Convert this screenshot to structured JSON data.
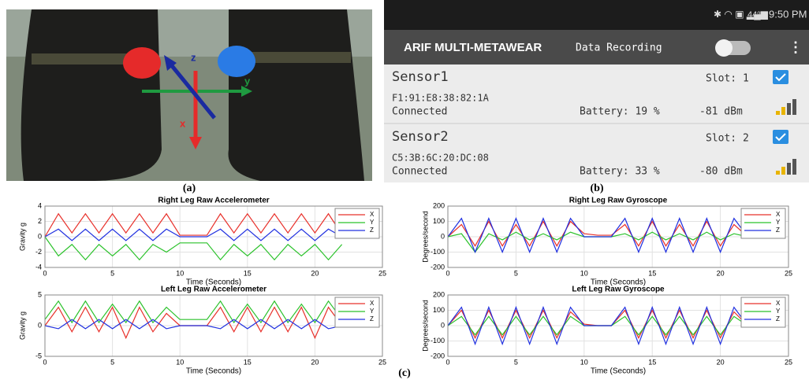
{
  "photo": {
    "label": "(a)",
    "axis_labels": [
      "z",
      "y",
      "x"
    ]
  },
  "app": {
    "label": "(b)",
    "status": {
      "battery": "44%",
      "time": "9:50 PM"
    },
    "title": "ARIF MULTI-METAWEAR",
    "recording": "Data Recording",
    "sensors": [
      {
        "name": "Sensor1",
        "slot": "Slot: 1",
        "mac": "F1:91:E8:38:82:1A",
        "state": "Connected",
        "battery": "Battery: 19 %",
        "rssi": "-81 dBm"
      },
      {
        "name": "Sensor2",
        "slot": "Slot: 2",
        "mac": "C5:3B:6C:20:DC:08",
        "state": "Connected",
        "battery": "Battery: 33 %",
        "rssi": "-80 dBm"
      }
    ]
  },
  "charts_label": "(c)",
  "chart_data": [
    {
      "type": "line",
      "title": "Right Leg Raw Accelerometer",
      "xlabel": "Time (Seconds)",
      "ylabel": "Gravity g",
      "legend": "upper right",
      "grid": true,
      "x": [
        0,
        1,
        2,
        3,
        4,
        5,
        6,
        7,
        8,
        9,
        10,
        11,
        12,
        13,
        14,
        15,
        16,
        17,
        18,
        19,
        20,
        21,
        22
      ],
      "xlim": [
        0,
        25
      ],
      "xticks": [
        0,
        5,
        10,
        15,
        20,
        25
      ],
      "ylim": [
        -4,
        4
      ],
      "yticks": [
        -4,
        -2,
        0,
        2,
        4
      ],
      "series": [
        {
          "name": "X",
          "color": "#e8302a",
          "values": [
            0,
            3,
            0.5,
            3,
            0.5,
            3,
            0.5,
            3,
            0.5,
            3,
            0.2,
            0.2,
            0.2,
            3,
            0.5,
            3,
            0.5,
            3,
            0.5,
            3,
            0.5,
            3,
            0.3
          ]
        },
        {
          "name": "Y",
          "color": "#2bc22b",
          "values": [
            0,
            -2.5,
            -1,
            -3,
            -1,
            -2.5,
            -1,
            -3,
            -1,
            -2,
            -0.8,
            -0.8,
            -0.8,
            -3,
            -1,
            -2.5,
            -1,
            -3,
            -1,
            -2.5,
            -1,
            -3,
            -1
          ]
        },
        {
          "name": "Z",
          "color": "#2030e0",
          "values": [
            0,
            1,
            -0.5,
            1,
            -0.5,
            1,
            -0.5,
            1,
            -0.5,
            1,
            0,
            0,
            0,
            1,
            -0.5,
            1,
            -0.5,
            1,
            -0.5,
            1,
            -0.5,
            1,
            0
          ]
        }
      ]
    },
    {
      "type": "line",
      "title": "Right Leg Raw Gyroscope",
      "xlabel": "Time (Seconds)",
      "ylabel": "Degrees/second",
      "legend": "upper right",
      "grid": true,
      "x": [
        0,
        1,
        2,
        3,
        4,
        5,
        6,
        7,
        8,
        9,
        10,
        11,
        12,
        13,
        14,
        15,
        16,
        17,
        18,
        19,
        20,
        21,
        22
      ],
      "xlim": [
        0,
        25
      ],
      "xticks": [
        0,
        5,
        10,
        15,
        20,
        25
      ],
      "ylim": [
        -200,
        200
      ],
      "yticks": [
        -200,
        -100,
        0,
        100,
        200
      ],
      "series": [
        {
          "name": "X",
          "color": "#e8302a",
          "values": [
            0,
            80,
            -60,
            100,
            -60,
            80,
            -60,
            100,
            -60,
            100,
            20,
            10,
            10,
            80,
            -60,
            100,
            -60,
            80,
            -60,
            100,
            -60,
            80,
            0
          ]
        },
        {
          "name": "Y",
          "color": "#2bc22b",
          "values": [
            0,
            20,
            -100,
            20,
            -20,
            30,
            -20,
            20,
            -20,
            30,
            0,
            0,
            0,
            20,
            -20,
            30,
            -20,
            20,
            -20,
            30,
            -20,
            20,
            0
          ]
        },
        {
          "name": "Z",
          "color": "#2030e0",
          "values": [
            0,
            120,
            -100,
            120,
            -100,
            120,
            -100,
            120,
            -100,
            120,
            0,
            0,
            0,
            120,
            -100,
            120,
            -100,
            120,
            -100,
            120,
            -100,
            120,
            0
          ]
        }
      ]
    },
    {
      "type": "line",
      "title": "Left Leg Raw Accelerometer",
      "xlabel": "Time (Seconds)",
      "ylabel": "Gravity g",
      "legend": "upper right",
      "grid": true,
      "x": [
        0,
        1,
        2,
        3,
        4,
        5,
        6,
        7,
        8,
        9,
        10,
        11,
        12,
        13,
        14,
        15,
        16,
        17,
        18,
        19,
        20,
        21,
        22
      ],
      "xlim": [
        0,
        25
      ],
      "xticks": [
        0,
        5,
        10,
        15,
        20,
        25
      ],
      "ylim": [
        -5,
        5
      ],
      "yticks": [
        -5,
        0,
        5
      ],
      "series": [
        {
          "name": "X",
          "color": "#e8302a",
          "values": [
            0,
            3,
            -1,
            3,
            -1,
            3,
            -2,
            3,
            -1,
            2,
            0,
            0,
            0,
            3,
            -1,
            3,
            -1,
            3,
            -1,
            3,
            -2,
            3,
            0
          ]
        },
        {
          "name": "Y",
          "color": "#2bc22b",
          "values": [
            1,
            4,
            0.5,
            4,
            0.5,
            3.5,
            0.5,
            4,
            0.5,
            3,
            1,
            1,
            1,
            4,
            0.5,
            3.5,
            0.5,
            4,
            0.5,
            3.5,
            0.5,
            4,
            1
          ]
        },
        {
          "name": "Z",
          "color": "#2030e0",
          "values": [
            0,
            -0.5,
            1,
            -0.5,
            1,
            -0.5,
            1,
            -0.5,
            1,
            -0.5,
            0,
            0,
            0,
            -0.5,
            1,
            -0.5,
            1,
            -0.5,
            1,
            -0.5,
            1,
            -0.5,
            0
          ]
        }
      ]
    },
    {
      "type": "line",
      "title": "Left Leg Raw Gyroscope",
      "xlabel": "Time (Seconds)",
      "ylabel": "Degrees/second",
      "legend": "upper right",
      "grid": true,
      "x": [
        0,
        1,
        2,
        3,
        4,
        5,
        6,
        7,
        8,
        9,
        10,
        11,
        12,
        13,
        14,
        15,
        16,
        17,
        18,
        19,
        20,
        21,
        22
      ],
      "xlim": [
        0,
        25
      ],
      "xticks": [
        0,
        5,
        10,
        15,
        20,
        25
      ],
      "ylim": [
        -200,
        200
      ],
      "yticks": [
        -200,
        -100,
        0,
        100,
        200
      ],
      "series": [
        {
          "name": "X",
          "color": "#e8302a",
          "values": [
            0,
            100,
            -80,
            100,
            -80,
            100,
            -80,
            100,
            -80,
            90,
            10,
            0,
            0,
            100,
            -80,
            100,
            -80,
            100,
            -80,
            100,
            -80,
            90,
            0
          ]
        },
        {
          "name": "Y",
          "color": "#2bc22b",
          "values": [
            0,
            60,
            -60,
            60,
            -60,
            60,
            -60,
            60,
            -60,
            60,
            0,
            0,
            0,
            60,
            -60,
            60,
            -60,
            60,
            -60,
            60,
            -60,
            60,
            0
          ]
        },
        {
          "name": "Z",
          "color": "#2030e0",
          "values": [
            0,
            120,
            -120,
            120,
            -120,
            120,
            -120,
            120,
            -120,
            120,
            0,
            0,
            0,
            120,
            -120,
            120,
            -120,
            120,
            -120,
            120,
            -120,
            120,
            0
          ]
        }
      ]
    }
  ]
}
